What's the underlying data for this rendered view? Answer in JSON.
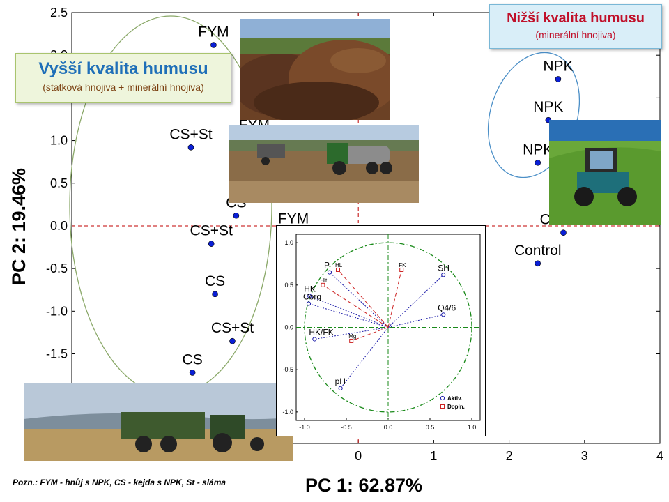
{
  "chart_data": [
    {
      "type": "scatter",
      "xlabel": "PC 1: 62.87%",
      "ylabel": "PC 2: 19.46%",
      "xlim": [
        -3.8,
        4
      ],
      "ylim": [
        -2.55,
        2.5
      ],
      "xticks": [
        0,
        1,
        2,
        3,
        4
      ],
      "yticks": [
        -1.5,
        -1.0,
        -0.5,
        0.0,
        0.5,
        1.0,
        1.5,
        2.0,
        2.5
      ],
      "ytick_labels": [
        "-1.5",
        "-1.0",
        "-0.5",
        "0.0",
        "0.5",
        "1.0",
        "1.5",
        "2.0",
        "2.5"
      ],
      "xtick_labels": [
        "0",
        "1",
        "2",
        "3",
        "4"
      ],
      "points": [
        {
          "label": "FYM",
          "x": -1.92,
          "y": 2.12
        },
        {
          "label": "CS+St",
          "x": -2.22,
          "y": 0.92
        },
        {
          "label": "FYM",
          "x": -1.38,
          "y": 1.03
        },
        {
          "label": "CS",
          "x": -1.62,
          "y": 0.12
        },
        {
          "label": "FYM",
          "x": -0.86,
          "y": -0.07
        },
        {
          "label": "CS+St",
          "x": -1.95,
          "y": -0.21
        },
        {
          "label": "CS",
          "x": -1.9,
          "y": -0.8
        },
        {
          "label": "CS+St",
          "x": -1.67,
          "y": -1.35
        },
        {
          "label": "CS",
          "x": -2.2,
          "y": -1.72
        },
        {
          "label": "NPK",
          "x": 2.65,
          "y": 1.72
        },
        {
          "label": "NPK",
          "x": 2.52,
          "y": 1.24
        },
        {
          "label": "NPK",
          "x": 2.38,
          "y": 0.74
        },
        {
          "label": "Control",
          "x": 3.05,
          "y": 0.28
        },
        {
          "label": "Control",
          "x": 2.72,
          "y": -0.08
        },
        {
          "label": "Control",
          "x": 2.38,
          "y": -0.44
        }
      ],
      "point_color": "#0a1fd6",
      "grid": false,
      "zero_lines_color": "#c00000"
    },
    {
      "type": "scatter",
      "subtype": "pca-loadings",
      "xlim": [
        -1.1,
        1.1
      ],
      "ylim": [
        -1.1,
        1.1
      ],
      "xtick_labels": [
        "-1.0",
        "-0.5",
        "0.0",
        "0.5",
        "1.0"
      ],
      "ytick_labels": [
        "-1.0",
        "-0.5",
        "0.0",
        "0.5",
        "1.0"
      ],
      "active": [
        {
          "label": "P",
          "x": -0.7,
          "y": 0.65
        },
        {
          "label": "SH",
          "x": 0.66,
          "y": 0.62
        },
        {
          "label": "HK",
          "x": -0.94,
          "y": 0.37
        },
        {
          "label": "Q4/6",
          "x": 0.66,
          "y": 0.15
        },
        {
          "label": "Corg",
          "x": -0.95,
          "y": 0.28
        },
        {
          "label": "HK/FK",
          "x": -0.88,
          "y": -0.14
        },
        {
          "label": "pH",
          "x": -0.57,
          "y": -0.72
        }
      ],
      "supplementary": [
        {
          "label": "HL",
          "x": -0.6,
          "y": 0.68
        },
        {
          "label": "FK",
          "x": 0.16,
          "y": 0.68
        },
        {
          "label": "Hlt",
          "x": -0.78,
          "y": 0.5
        },
        {
          "label": "Mg",
          "x": -0.44,
          "y": -0.16
        }
      ],
      "legend": [
        "Aktiv.",
        "Dopln."
      ],
      "legend_position": "bottom-right",
      "colors": {
        "active": "#1a1aa8",
        "supplementary": "#cc2222",
        "circle": "#1a8a1a"
      }
    }
  ],
  "labels": {
    "high_title": "Vyšší kvalita humusu",
    "high_sub": "(statková hnojiva + minerální hnojiva)",
    "low_title": "Nižší kvalita humusu",
    "low_sub": "(minerální hnojiva)",
    "note": "Pozn.: FYM - hnůj s NPK, CS - kejda s NPK, St - sláma"
  },
  "photos": [
    {
      "name": "manure-heap-photo"
    },
    {
      "name": "tractor-slurry-tanker-photo"
    },
    {
      "name": "tractor-fertilizer-spreader-photo"
    },
    {
      "name": "manure-spreader-photo"
    }
  ]
}
